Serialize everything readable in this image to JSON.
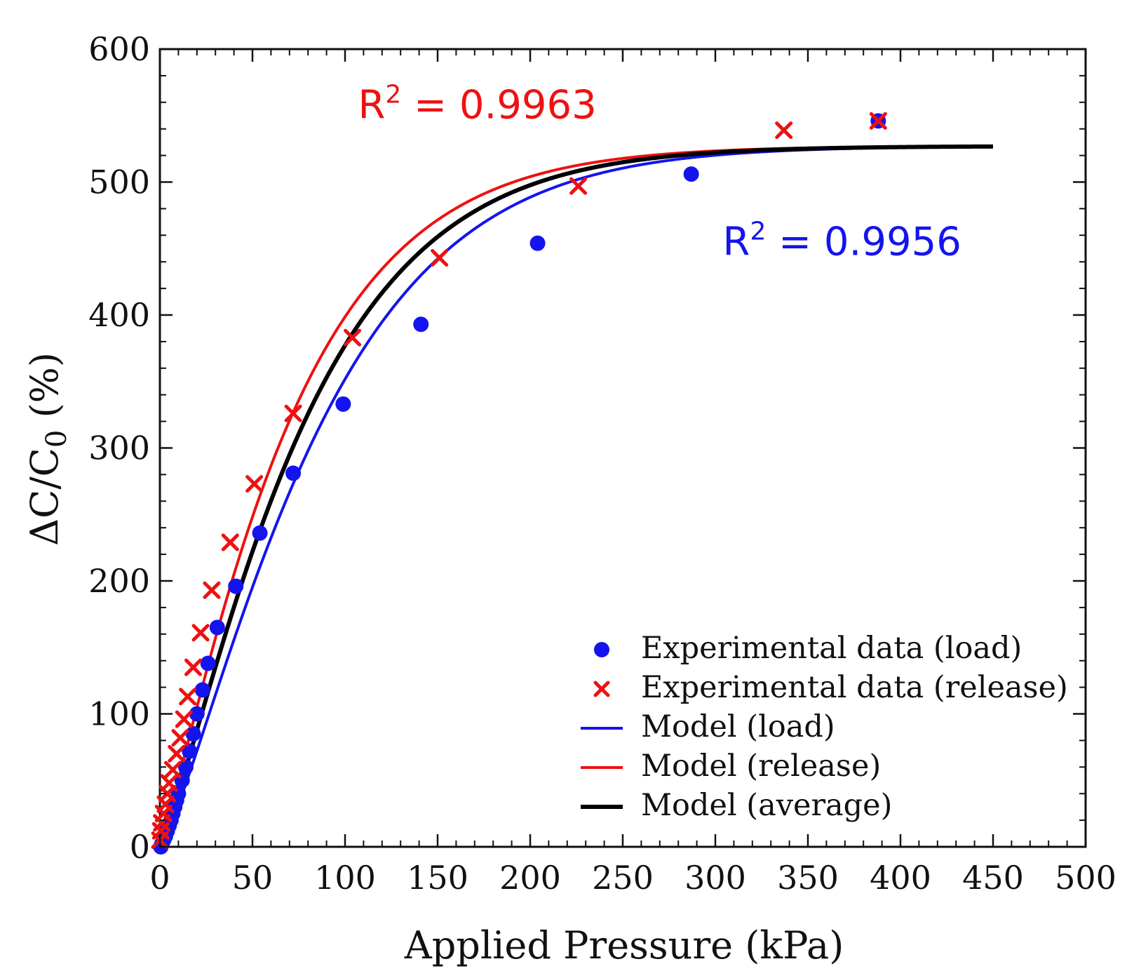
{
  "chart_data": {
    "type": "scatter",
    "title": "",
    "xlabel": "Applied Pressure (kPa)",
    "ylabel": "ΔC/C0 (%)",
    "ylabel_main": "ΔC/C",
    "ylabel_sub": "0",
    "ylabel_suffix": " (%)",
    "xlim": [
      0,
      500
    ],
    "ylim": [
      0,
      600
    ],
    "xticks": [
      0,
      50,
      100,
      150,
      200,
      250,
      300,
      350,
      400,
      450,
      500
    ],
    "yticks": [
      0,
      100,
      200,
      300,
      400,
      500,
      600
    ],
    "grid": false,
    "legend_position": "bottom-right",
    "colors": {
      "load": "#1414ee",
      "release": "#ee1111",
      "average": "#000000"
    },
    "series": [
      {
        "name": "Experimental data (load)",
        "kind": "scatter",
        "marker": "circle",
        "color": "#1414ee",
        "x": [
          0.5,
          1,
          2,
          3,
          4,
          5,
          6,
          7,
          8,
          9,
          10,
          12,
          14,
          16,
          18,
          20,
          23,
          26,
          31,
          41,
          54,
          72,
          99,
          141,
          204,
          287,
          388
        ],
        "y": [
          0,
          2,
          5,
          8,
          12,
          16,
          20,
          25,
          30,
          35,
          40,
          50,
          60,
          72,
          85,
          100,
          118,
          138,
          165,
          196,
          236,
          281,
          333,
          393,
          454,
          506,
          546
        ]
      },
      {
        "name": "Experimental data (release)",
        "kind": "scatter",
        "marker": "x",
        "color": "#ee1111",
        "x": [
          0,
          0.5,
          1,
          2,
          3,
          4,
          5,
          7,
          9,
          11,
          13,
          15,
          18,
          22,
          28,
          38,
          51,
          72,
          104,
          151,
          226,
          337,
          388
        ],
        "y": [
          5,
          12,
          18,
          25,
          32,
          40,
          48,
          58,
          70,
          82,
          96,
          113,
          135,
          161,
          193,
          229,
          273,
          326,
          383,
          443,
          497,
          539,
          546
        ]
      },
      {
        "name": "Model (load)",
        "kind": "line",
        "color": "#1414ee",
        "model": {
          "a": 527,
          "k": 0.0108,
          "n": 1.25
        }
      },
      {
        "name": "Model (release)",
        "kind": "line",
        "color": "#ee1111",
        "model": {
          "a": 527,
          "k": 0.0135,
          "n": 1.15
        }
      },
      {
        "name": "Model (average)",
        "kind": "line",
        "color": "#000000",
        "model": {
          "a": 527,
          "k": 0.0121,
          "n": 1.2
        }
      }
    ],
    "legend": [
      {
        "label": "Experimental data (load)",
        "symbol": "circle",
        "color": "#1414ee"
      },
      {
        "label": "Experimental data (release)",
        "symbol": "x",
        "color": "#ee1111"
      },
      {
        "label": "Model (load)",
        "symbol": "line",
        "color": "#1414ee"
      },
      {
        "label": "Model (release)",
        "symbol": "line",
        "color": "#ee1111"
      },
      {
        "label": "Model (average)",
        "symbol": "line-bold",
        "color": "#000000"
      }
    ],
    "annotations": [
      {
        "name": "r2-release",
        "base": "R",
        "sup": "2",
        "rest": " = 0.9963",
        "color": "#ee1111",
        "x": 107,
        "y": 548
      },
      {
        "name": "r2-load",
        "base": "R",
        "sup": "2",
        "rest": " = 0.9956",
        "color": "#1414ee",
        "x": 304,
        "y": 445
      }
    ]
  }
}
